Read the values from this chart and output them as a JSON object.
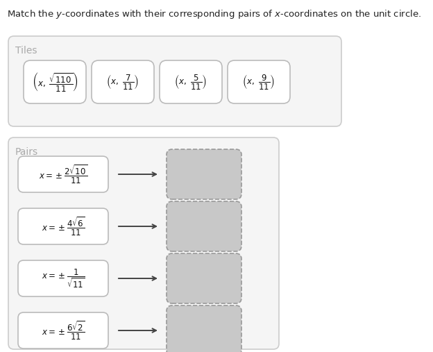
{
  "bg_color": "#ffffff",
  "title": "Match the $y$-coordinates with their corresponding pairs of $x$-coordinates on the unit circle.",
  "title_fontsize": 9.5,
  "tiles_label": "Tiles",
  "tiles_label_color": "#aaaaaa",
  "pairs_label": "Pairs",
  "pairs_label_color": "#aaaaaa",
  "section_bg": "#f5f5f5",
  "section_border": "#cccccc",
  "tile_bg": "#ffffff",
  "tile_border": "#bbbbbb",
  "pair_box_bg": "#ffffff",
  "pair_box_border": "#bbbbbb",
  "drop_bg": "#c8c8c8",
  "drop_border": "#aaaaaa",
  "tile_formulas": [
    "$\\left(x,\\ \\dfrac{\\sqrt{110}}{11}\\right)$",
    "$\\left(x,\\ \\dfrac{7}{11}\\right)$",
    "$\\left(x,\\ \\dfrac{5}{11}\\right)$",
    "$\\left(x,\\ \\dfrac{9}{11}\\right)$"
  ],
  "pair_formulas": [
    "$x = \\pm\\dfrac{2\\sqrt{10}}{11}$",
    "$x = \\pm\\dfrac{4\\sqrt{6}}{11}$",
    "$x = \\pm\\dfrac{1}{\\sqrt{11}}$",
    "$x = \\pm\\dfrac{6\\sqrt{2}}{11}$"
  ]
}
